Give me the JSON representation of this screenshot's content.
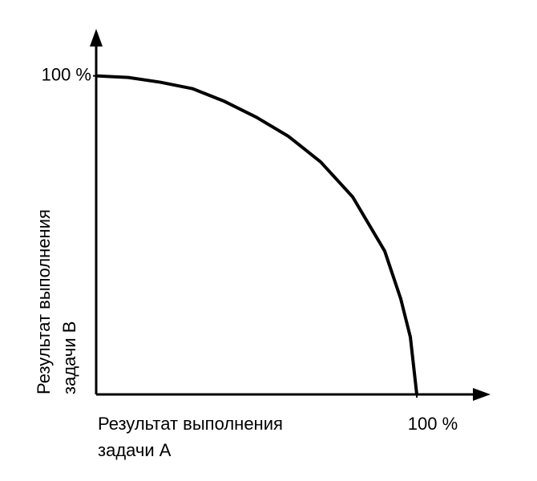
{
  "chart_data": {
    "type": "line",
    "x_label": [
      "Результат выполнения",
      "задачи А"
    ],
    "y_label": [
      "Результат выполнения",
      "задачи В"
    ],
    "x": [
      0,
      10,
      20,
      30,
      40,
      50,
      60,
      70,
      80,
      90,
      95,
      98,
      100
    ],
    "series": [
      {
        "color": "#000000",
        "values": [
          100,
          99.5,
          98,
          96,
          92,
          87,
          81,
          73,
          62,
          45,
          30,
          18,
          0
        ]
      }
    ],
    "xlim": [
      0,
      122
    ],
    "ylim": [
      0,
      114
    ],
    "xticks": [
      {
        "value": 100,
        "label": "100 %"
      }
    ],
    "yticks": [
      {
        "value": 100,
        "label": "100 %"
      }
    ],
    "grid": false
  }
}
